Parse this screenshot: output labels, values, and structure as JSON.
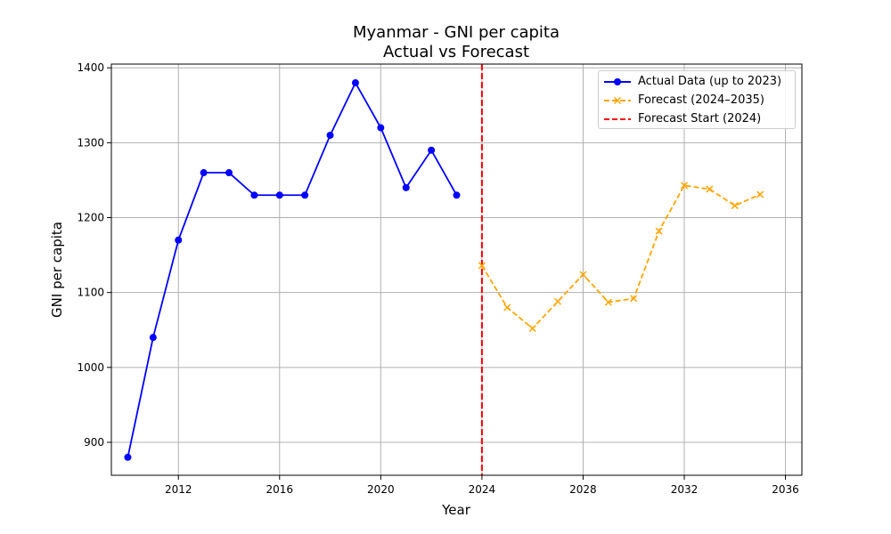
{
  "chart_data": {
    "type": "line",
    "title": "Myanmar - GNI per capita",
    "subtitle": "Actual vs Forecast",
    "xlabel": "Year",
    "ylabel": "GNI per capita",
    "xlim": [
      2009.35,
      2036.65
    ],
    "ylim": [
      856,
      1405
    ],
    "x_ticks": [
      2012,
      2016,
      2020,
      2024,
      2028,
      2032,
      2036
    ],
    "y_ticks": [
      900,
      1000,
      1100,
      1200,
      1300,
      1400
    ],
    "grid": true,
    "legend_position": "top-right",
    "series": [
      {
        "name": "Actual Data (up to 2023)",
        "color": "#0000ff",
        "style": "solid",
        "marker": "circle",
        "x": [
          2010,
          2011,
          2012,
          2013,
          2014,
          2015,
          2016,
          2017,
          2018,
          2019,
          2020,
          2021,
          2022,
          2023
        ],
        "y": [
          880,
          1040,
          1170,
          1260,
          1260,
          1230,
          1230,
          1230,
          1310,
          1380,
          1320,
          1240,
          1290,
          1230
        ]
      },
      {
        "name": "Forecast (2024–2035)",
        "color": "#ffa500",
        "style": "dashed",
        "marker": "x",
        "x": [
          2024,
          2025,
          2026,
          2027,
          2028,
          2029,
          2030,
          2031,
          2032,
          2033,
          2034,
          2035
        ],
        "y": [
          1136,
          1080,
          1052,
          1088,
          1124,
          1087,
          1092,
          1182,
          1243,
          1238,
          1216,
          1231
        ]
      }
    ],
    "vlines": [
      {
        "name": "Forecast Start (2024)",
        "x": 2024,
        "color": "#ff0000",
        "style": "dashed"
      }
    ]
  }
}
